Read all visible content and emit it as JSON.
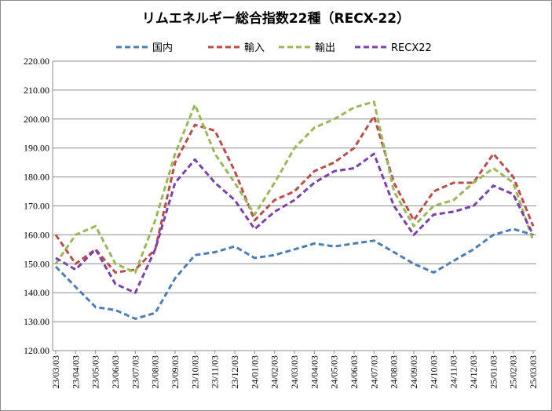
{
  "chart_data": {
    "type": "line",
    "title": "リムエネルギー総合指数22種（RECX-22）",
    "xlabel": "",
    "ylabel": "",
    "ylim": [
      120,
      220
    ],
    "yticks": [
      "120.00",
      "130.00",
      "140.00",
      "150.00",
      "160.00",
      "170.00",
      "180.00",
      "190.00",
      "200.00",
      "210.00",
      "220.00"
    ],
    "categories": [
      "23/03/03",
      "23/04/03",
      "23/05/03",
      "23/06/03",
      "23/07/03",
      "23/08/03",
      "23/09/03",
      "23/10/03",
      "23/11/03",
      "23/12/03",
      "24/01/03",
      "24/02/03",
      "24/03/03",
      "24/04/03",
      "24/05/03",
      "24/06/03",
      "24/07/03",
      "24/08/03",
      "24/09/03",
      "24/10/03",
      "24/11/03",
      "24/12/03",
      "25/01/03",
      "25/02/03",
      "25/03/03"
    ],
    "grid": true,
    "legend": "top",
    "series": [
      {
        "name": "国内",
        "color": "#4a7ebb",
        "values": [
          149,
          142,
          135,
          134,
          131,
          133,
          145,
          153,
          154,
          156,
          152,
          153,
          155,
          157,
          156,
          157,
          158,
          154,
          150,
          147,
          151,
          155,
          160,
          162,
          160
        ]
      },
      {
        "name": "輸入",
        "color": "#be4b48",
        "values": [
          160,
          150,
          155,
          147,
          148,
          155,
          185,
          198,
          196,
          182,
          165,
          172,
          175,
          182,
          185,
          190,
          201,
          178,
          165,
          175,
          178,
          178,
          188,
          180,
          163
        ]
      },
      {
        "name": "輸出",
        "color": "#98b954",
        "values": [
          150,
          160,
          163,
          150,
          147,
          165,
          188,
          205,
          188,
          178,
          167,
          178,
          190,
          197,
          200,
          204,
          206,
          175,
          163,
          170,
          172,
          178,
          183,
          178,
          158
        ]
      },
      {
        "name": "RECX22",
        "color": "#7d3fad",
        "values": [
          152,
          148,
          155,
          143,
          140,
          155,
          178,
          186,
          178,
          172,
          162,
          168,
          172,
          178,
          182,
          183,
          188,
          170,
          160,
          167,
          168,
          170,
          177,
          174,
          160
        ]
      }
    ]
  }
}
